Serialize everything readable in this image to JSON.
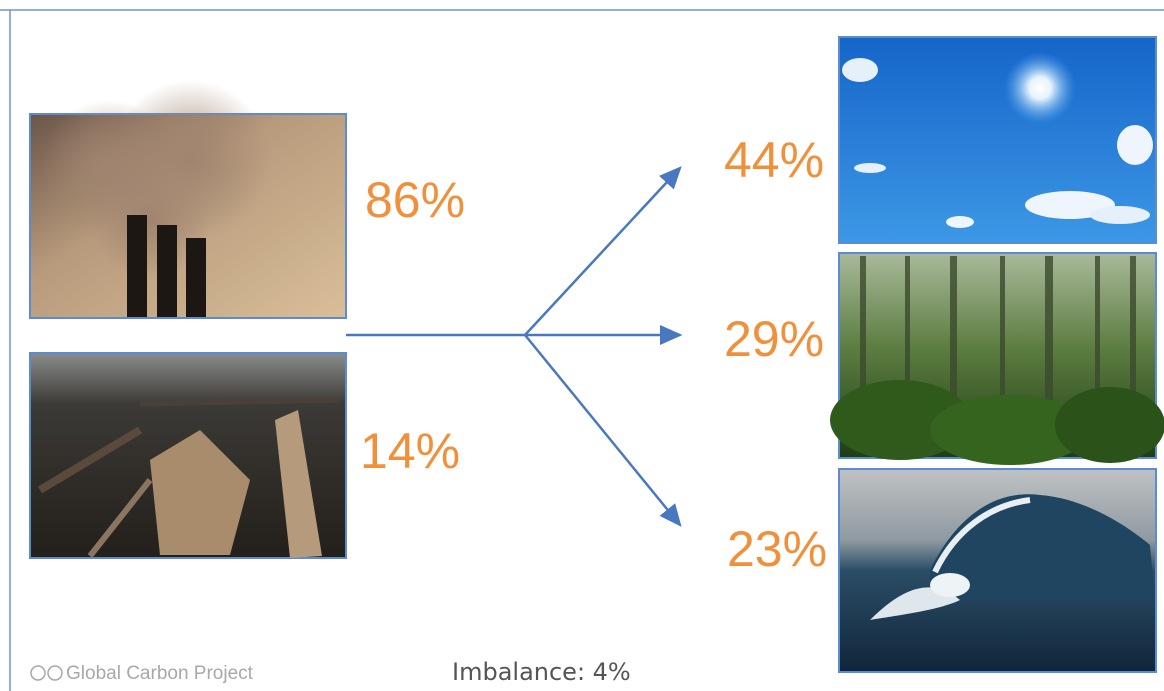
{
  "sources": [
    {
      "label": "86%"
    },
    {
      "label": "14%"
    }
  ],
  "sinks": [
    {
      "label": "44%"
    },
    {
      "label": "29%"
    },
    {
      "label": "23%"
    }
  ],
  "footer": {
    "credit": "Global Carbon Project",
    "imbalance": "Imbalance: 4%"
  }
}
